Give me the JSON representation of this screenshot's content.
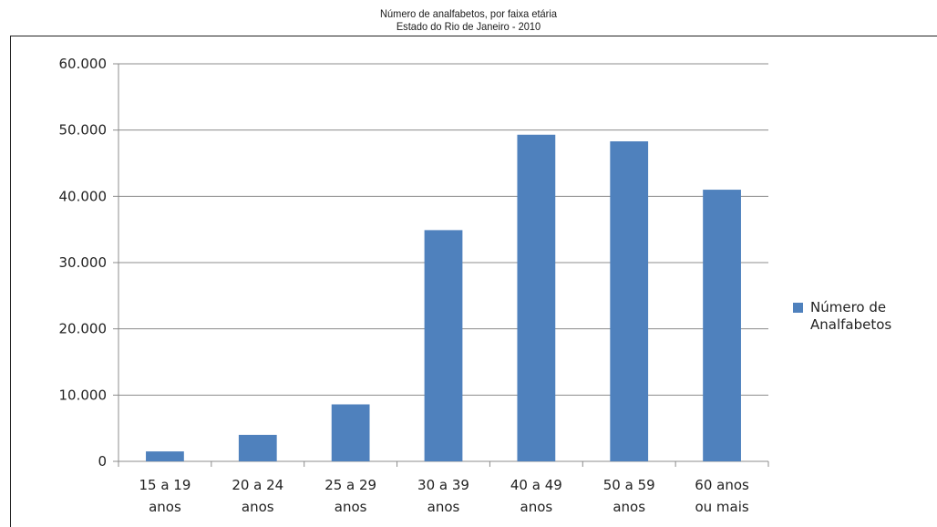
{
  "chart_data": {
    "type": "bar",
    "title": "Número de analfabetos, por faixa etária",
    "subtitle": "Estado do Rio de Janeiro - 2010",
    "categories": [
      [
        "15 a 19",
        "anos"
      ],
      [
        "20 a 24",
        "anos"
      ],
      [
        "25 a 29",
        "anos"
      ],
      [
        "30 a 39",
        "anos"
      ],
      [
        "40 a 49",
        "anos"
      ],
      [
        "50 a 59",
        "anos"
      ],
      [
        "60 anos",
        "ou mais"
      ]
    ],
    "series": [
      {
        "name": "Número de Analfabetos",
        "name_lines": [
          "Número de",
          "Analfabetos"
        ],
        "color": "#4f81bd",
        "values": [
          1500,
          4000,
          8600,
          34900,
          49300,
          48300,
          41000
        ]
      }
    ],
    "ylim": [
      0,
      60000
    ],
    "yticks": [
      0,
      10000,
      20000,
      30000,
      40000,
      50000,
      60000
    ],
    "ytick_labels": [
      "0",
      "10.000",
      "20.000",
      "30.000",
      "40.000",
      "50.000",
      "60.000"
    ],
    "xlabel": "",
    "ylabel": "",
    "grid": true,
    "legend": "right"
  }
}
